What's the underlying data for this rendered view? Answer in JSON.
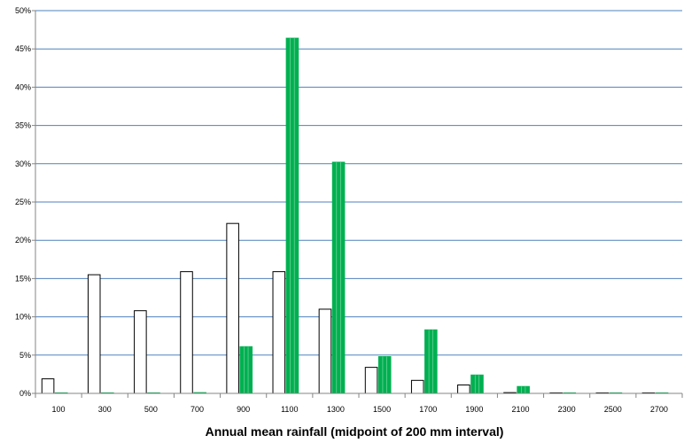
{
  "chart_data": {
    "type": "bar",
    "title": "",
    "xlabel": "Annual mean rainfall (midpoint of 200 mm interval)",
    "ylabel": "",
    "categories": [
      "100",
      "300",
      "500",
      "700",
      "900",
      "1100",
      "1300",
      "1500",
      "1700",
      "1900",
      "2100",
      "2300",
      "2500",
      "2700"
    ],
    "ylim": [
      0,
      50
    ],
    "yticks": [
      "0%",
      "5%",
      "10%",
      "15%",
      "20%",
      "25%",
      "30%",
      "35%",
      "40%",
      "45%",
      "50%"
    ],
    "grid": true,
    "series": [
      {
        "values": [
          1.9,
          15.5,
          10.8,
          15.9,
          22.2,
          15.9,
          11.0,
          3.4,
          1.7,
          1.1,
          0.1,
          0.05,
          0.05,
          0.05
        ],
        "fill": "#ffffff",
        "stroke": "#000000"
      },
      {
        "values": [
          0,
          0,
          0,
          0.1,
          6.1,
          46.4,
          30.2,
          4.8,
          8.3,
          2.4,
          0.9,
          0.05,
          0.0,
          0.0
        ],
        "fill": "#00b050",
        "stroke": "#00b050"
      }
    ],
    "colors": {
      "grid": "#4f81bd",
      "axis": "#868686"
    }
  }
}
